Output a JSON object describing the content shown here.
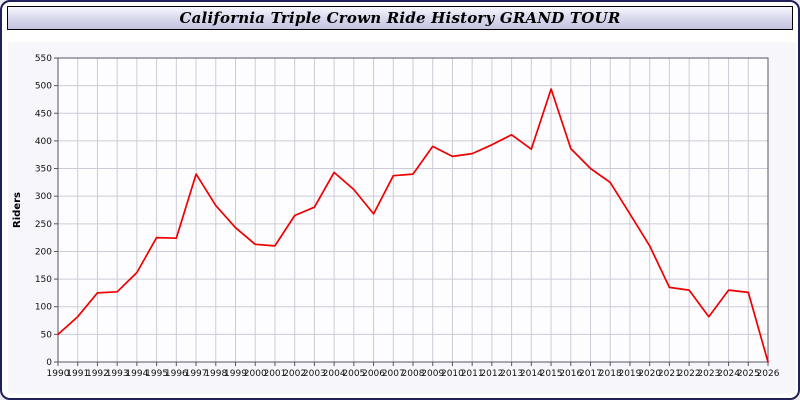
{
  "header": {
    "title": "California Triple Crown Ride History GRAND TOUR"
  },
  "chart_data": {
    "type": "line",
    "title": "California Triple Crown Ride History GRAND TOUR",
    "xlabel": "",
    "ylabel": "Riders",
    "ylim": [
      0,
      550
    ],
    "ytick_step": 50,
    "grid": true,
    "legend_position": "none",
    "line_color": "#ee0000",
    "x": [
      1990,
      1991,
      1992,
      1993,
      1994,
      1995,
      1996,
      1997,
      1998,
      1999,
      2000,
      2001,
      2002,
      2003,
      2004,
      2005,
      2006,
      2007,
      2008,
      2009,
      2010,
      2011,
      2012,
      2013,
      2014,
      2015,
      2016,
      2017,
      2018,
      2019,
      2020,
      2021,
      2022,
      2023,
      2024,
      2025,
      2026
    ],
    "series": [
      {
        "name": "Riders",
        "values": [
          50,
          82,
          125,
          127,
          162,
          225,
          224,
          340,
          283,
          243,
          213,
          210,
          265,
          280,
          343,
          312,
          268,
          337,
          340,
          390,
          372,
          377,
          393,
          411,
          385,
          494,
          386,
          350,
          325,
          268,
          210,
          135,
          130,
          82,
          130,
          126,
          0
        ]
      }
    ]
  },
  "colors": {
    "grid": "#ccccd8",
    "plot_bg": "#fdfdff",
    "axis": "#555566",
    "tick_text": "#111111"
  }
}
